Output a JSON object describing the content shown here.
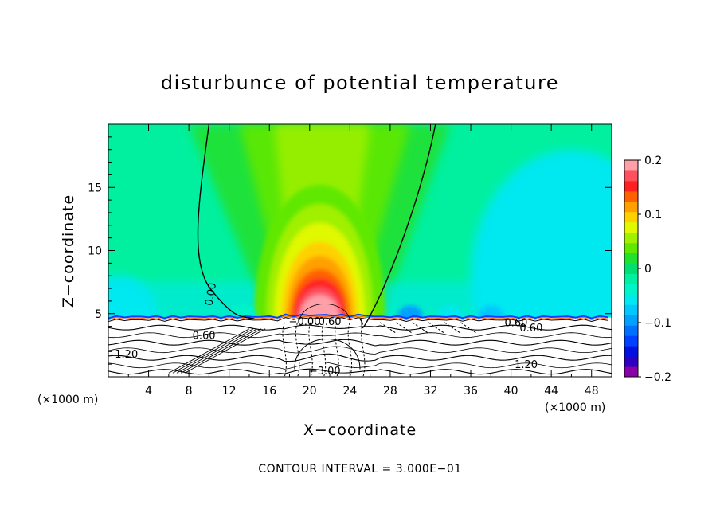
{
  "chart_data": {
    "type": "heatmap",
    "title": "disturbunce of potential temperature",
    "xlabel": "X−coordinate",
    "ylabel": "Z−coordinate",
    "x_unit_left": "(×1000 m)",
    "x_unit_right": "(×1000 m)",
    "xlim": [
      0,
      50
    ],
    "ylim": [
      0,
      20
    ],
    "x_ticks": [
      4,
      8,
      12,
      16,
      20,
      24,
      28,
      32,
      36,
      40,
      44,
      48
    ],
    "x_tick_labels": [
      "4",
      "8",
      "12",
      "16",
      "20",
      "24",
      "28",
      "32",
      "36",
      "40",
      "44",
      "48"
    ],
    "y_ticks": [
      5,
      10,
      15
    ],
    "y_tick_labels": [
      "5",
      "10",
      "15"
    ],
    "colorbar": {
      "min": -0.2,
      "max": 0.2,
      "levels": [
        -0.2,
        -0.18,
        -0.16,
        -0.14,
        -0.12,
        -0.1,
        -0.08,
        -0.06,
        -0.04,
        -0.02,
        0,
        0.02,
        0.04,
        0.06,
        0.08,
        0.1,
        0.12,
        0.14,
        0.16,
        0.18,
        0.2
      ],
      "colors": [
        "#8a00a8",
        "#2c00c0",
        "#0010e0",
        "#0040ff",
        "#0070ff",
        "#00a0ff",
        "#00c8ff",
        "#00e8f0",
        "#00f4c8",
        "#00f0a0",
        "#00e070",
        "#20e030",
        "#60e800",
        "#a0f000",
        "#e0f800",
        "#ffd000",
        "#ffa000",
        "#ff6000",
        "#ff2020",
        "#ff5060",
        "#ffa0a8"
      ],
      "tick_values": [
        0.2,
        0.1,
        0,
        -0.1,
        -0.2
      ],
      "tick_labels": [
        "0.2",
        "0.1",
        "0",
        "−0.1",
        "−0.2"
      ]
    },
    "field_features": {
      "background_value": -0.02,
      "warm_plume": {
        "center_x": 21,
        "base_z": 4.5,
        "top_z": 15.5,
        "peak_value": 0.2
      },
      "cool_region_right": {
        "center_x": 46,
        "top_z": 14.5,
        "value": -0.06
      },
      "terrain_top_z": 4.5
    },
    "contour_labels": [
      {
        "text": "0.00",
        "x": 10.5,
        "z": 6.5
      },
      {
        "text": "0.60",
        "x": 9.5,
        "z": 3.0
      },
      {
        "text": "1.20",
        "x": 1.8,
        "z": 1.5
      },
      {
        "text": "0.60",
        "x": 40.5,
        "z": 4.0
      },
      {
        "text": "0.60",
        "x": 42.0,
        "z": 3.6
      },
      {
        "text": "1.20",
        "x": 41.5,
        "z": 0.7
      },
      {
        "text": "−0.00",
        "x": 19.5,
        "z": 4.1
      },
      {
        "text": "0.60",
        "x": 22.0,
        "z": 4.1
      },
      {
        "text": "−3.00",
        "x": 21.5,
        "z": 0.2
      }
    ],
    "annotation": "CONTOUR INTERVAL = 3.000E−01"
  }
}
